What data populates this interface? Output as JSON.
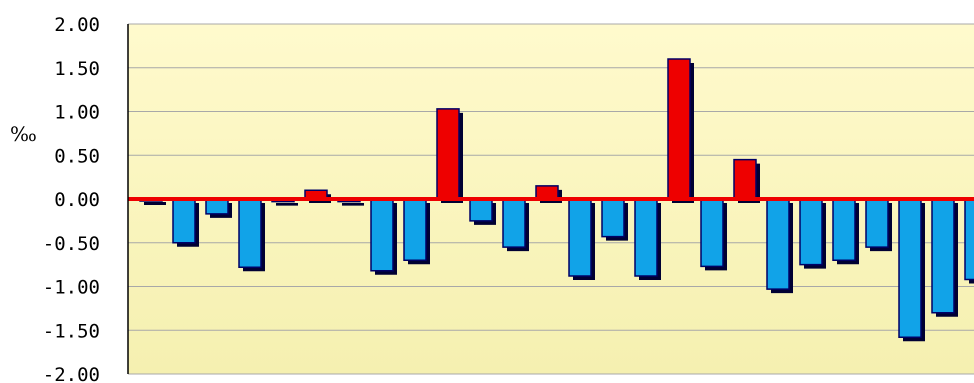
{
  "chart_data": {
    "type": "bar",
    "ylabel": "‰",
    "ylim": [
      -2.0,
      2.0
    ],
    "y_ticks": [
      {
        "value": 2.0,
        "label": "2.00"
      },
      {
        "value": 1.5,
        "label": "1.50"
      },
      {
        "value": 1.0,
        "label": "1.00"
      },
      {
        "value": 0.5,
        "label": "0.50"
      },
      {
        "value": 0.0,
        "label": "0.00"
      },
      {
        "value": -0.5,
        "label": "-0.50"
      },
      {
        "value": -1.0,
        "label": "-1.00"
      },
      {
        "value": -1.5,
        "label": "-1.50"
      },
      {
        "value": -2.0,
        "label": "-2.00"
      }
    ],
    "values": [
      0.0,
      -0.5,
      -0.17,
      -0.78,
      -0.03,
      0.1,
      -0.03,
      -0.82,
      -0.7,
      1.03,
      -0.25,
      -0.55,
      0.15,
      -0.88,
      -0.43,
      -0.88,
      1.6,
      -0.77,
      0.45,
      -1.03,
      -0.75,
      -0.7,
      -0.55,
      -1.58,
      -1.3,
      -0.92
    ],
    "grid": true,
    "colors": {
      "positive": "#ee0000",
      "negative": "#11a3e8",
      "bar_outline": "#000066",
      "shadow": "#000033",
      "zero_line": "#ee0000",
      "plot_bg_top": "#fffacd",
      "plot_bg_bottom": "#f5f0b0",
      "grid": "#a8a8a8",
      "tick_text": "#000000"
    }
  }
}
